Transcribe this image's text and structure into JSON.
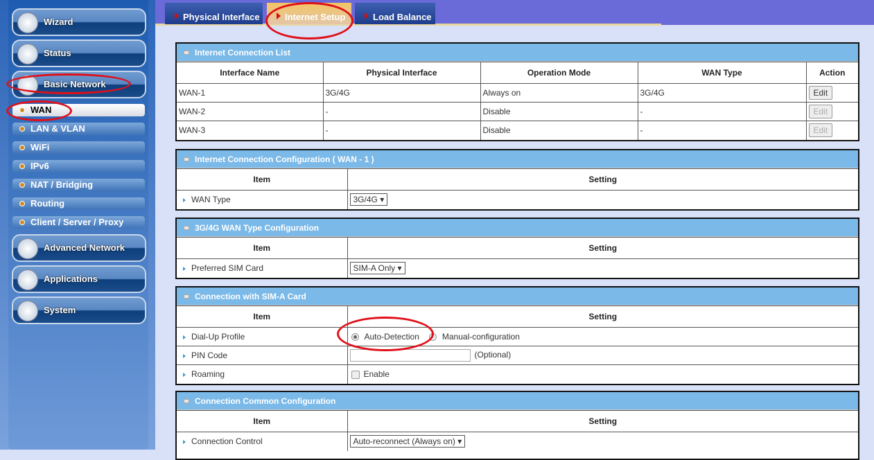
{
  "sidebar": {
    "main": [
      {
        "label": "Wizard",
        "icon": "wand-icon"
      },
      {
        "label": "Status",
        "icon": "chart-icon"
      },
      {
        "label": "Basic Network",
        "icon": "globe-icon"
      },
      {
        "label": "Advanced Network",
        "icon": "tools-icon"
      },
      {
        "label": "Applications",
        "icon": "box-icon"
      },
      {
        "label": "System",
        "icon": "computer-icon"
      }
    ],
    "sub": [
      {
        "label": "WAN",
        "active": true
      },
      {
        "label": "LAN & VLAN"
      },
      {
        "label": "WiFi"
      },
      {
        "label": "IPv6"
      },
      {
        "label": "NAT / Bridging"
      },
      {
        "label": "Routing"
      },
      {
        "label": "Client / Server / Proxy"
      }
    ]
  },
  "tabs": [
    {
      "label": "Physical Interface"
    },
    {
      "label": "Internet Setup",
      "active": true
    },
    {
      "label": "Load Balance"
    }
  ],
  "list": {
    "title": "Internet Connection List",
    "headers": [
      "Interface Name",
      "Physical Interface",
      "Operation Mode",
      "WAN Type",
      "Action"
    ],
    "rows": [
      [
        "WAN-1",
        "3G/4G",
        "Always on",
        "3G/4G",
        "Edit"
      ],
      [
        "WAN-2",
        "-",
        "Disable",
        "-",
        "Edit"
      ],
      [
        "WAN-3",
        "-",
        "Disable",
        "-",
        "Edit"
      ]
    ]
  },
  "cfg": {
    "title": "Internet Connection Configuration ( WAN - 1 )",
    "item": "Item",
    "setting": "Setting",
    "wan_type_label": "WAN Type",
    "wan_type_value": "3G/4G"
  },
  "wtc": {
    "title": "3G/4G WAN Type Configuration",
    "item": "Item",
    "setting": "Setting",
    "sim_label": "Preferred SIM Card",
    "sim_value": "SIM-A Only"
  },
  "sima": {
    "title": "Connection with SIM-A Card",
    "item": "Item",
    "setting": "Setting",
    "dialup_label": "Dial-Up Profile",
    "auto": "Auto-Detection",
    "manual": "Manual-configuration",
    "pin_label": "PIN Code",
    "pin_value": "",
    "optional": "(Optional)",
    "roaming_label": "Roaming",
    "enable": "Enable"
  },
  "common": {
    "title": "Connection Common Configuration",
    "item": "Item",
    "setting": "Setting",
    "control_label": "Connection Control",
    "control_value": "Auto-reconnect (Always on)"
  },
  "colors": {
    "header": "#7ab9e8",
    "annotation": "#e0101a",
    "active_tab": "#f3c464"
  }
}
